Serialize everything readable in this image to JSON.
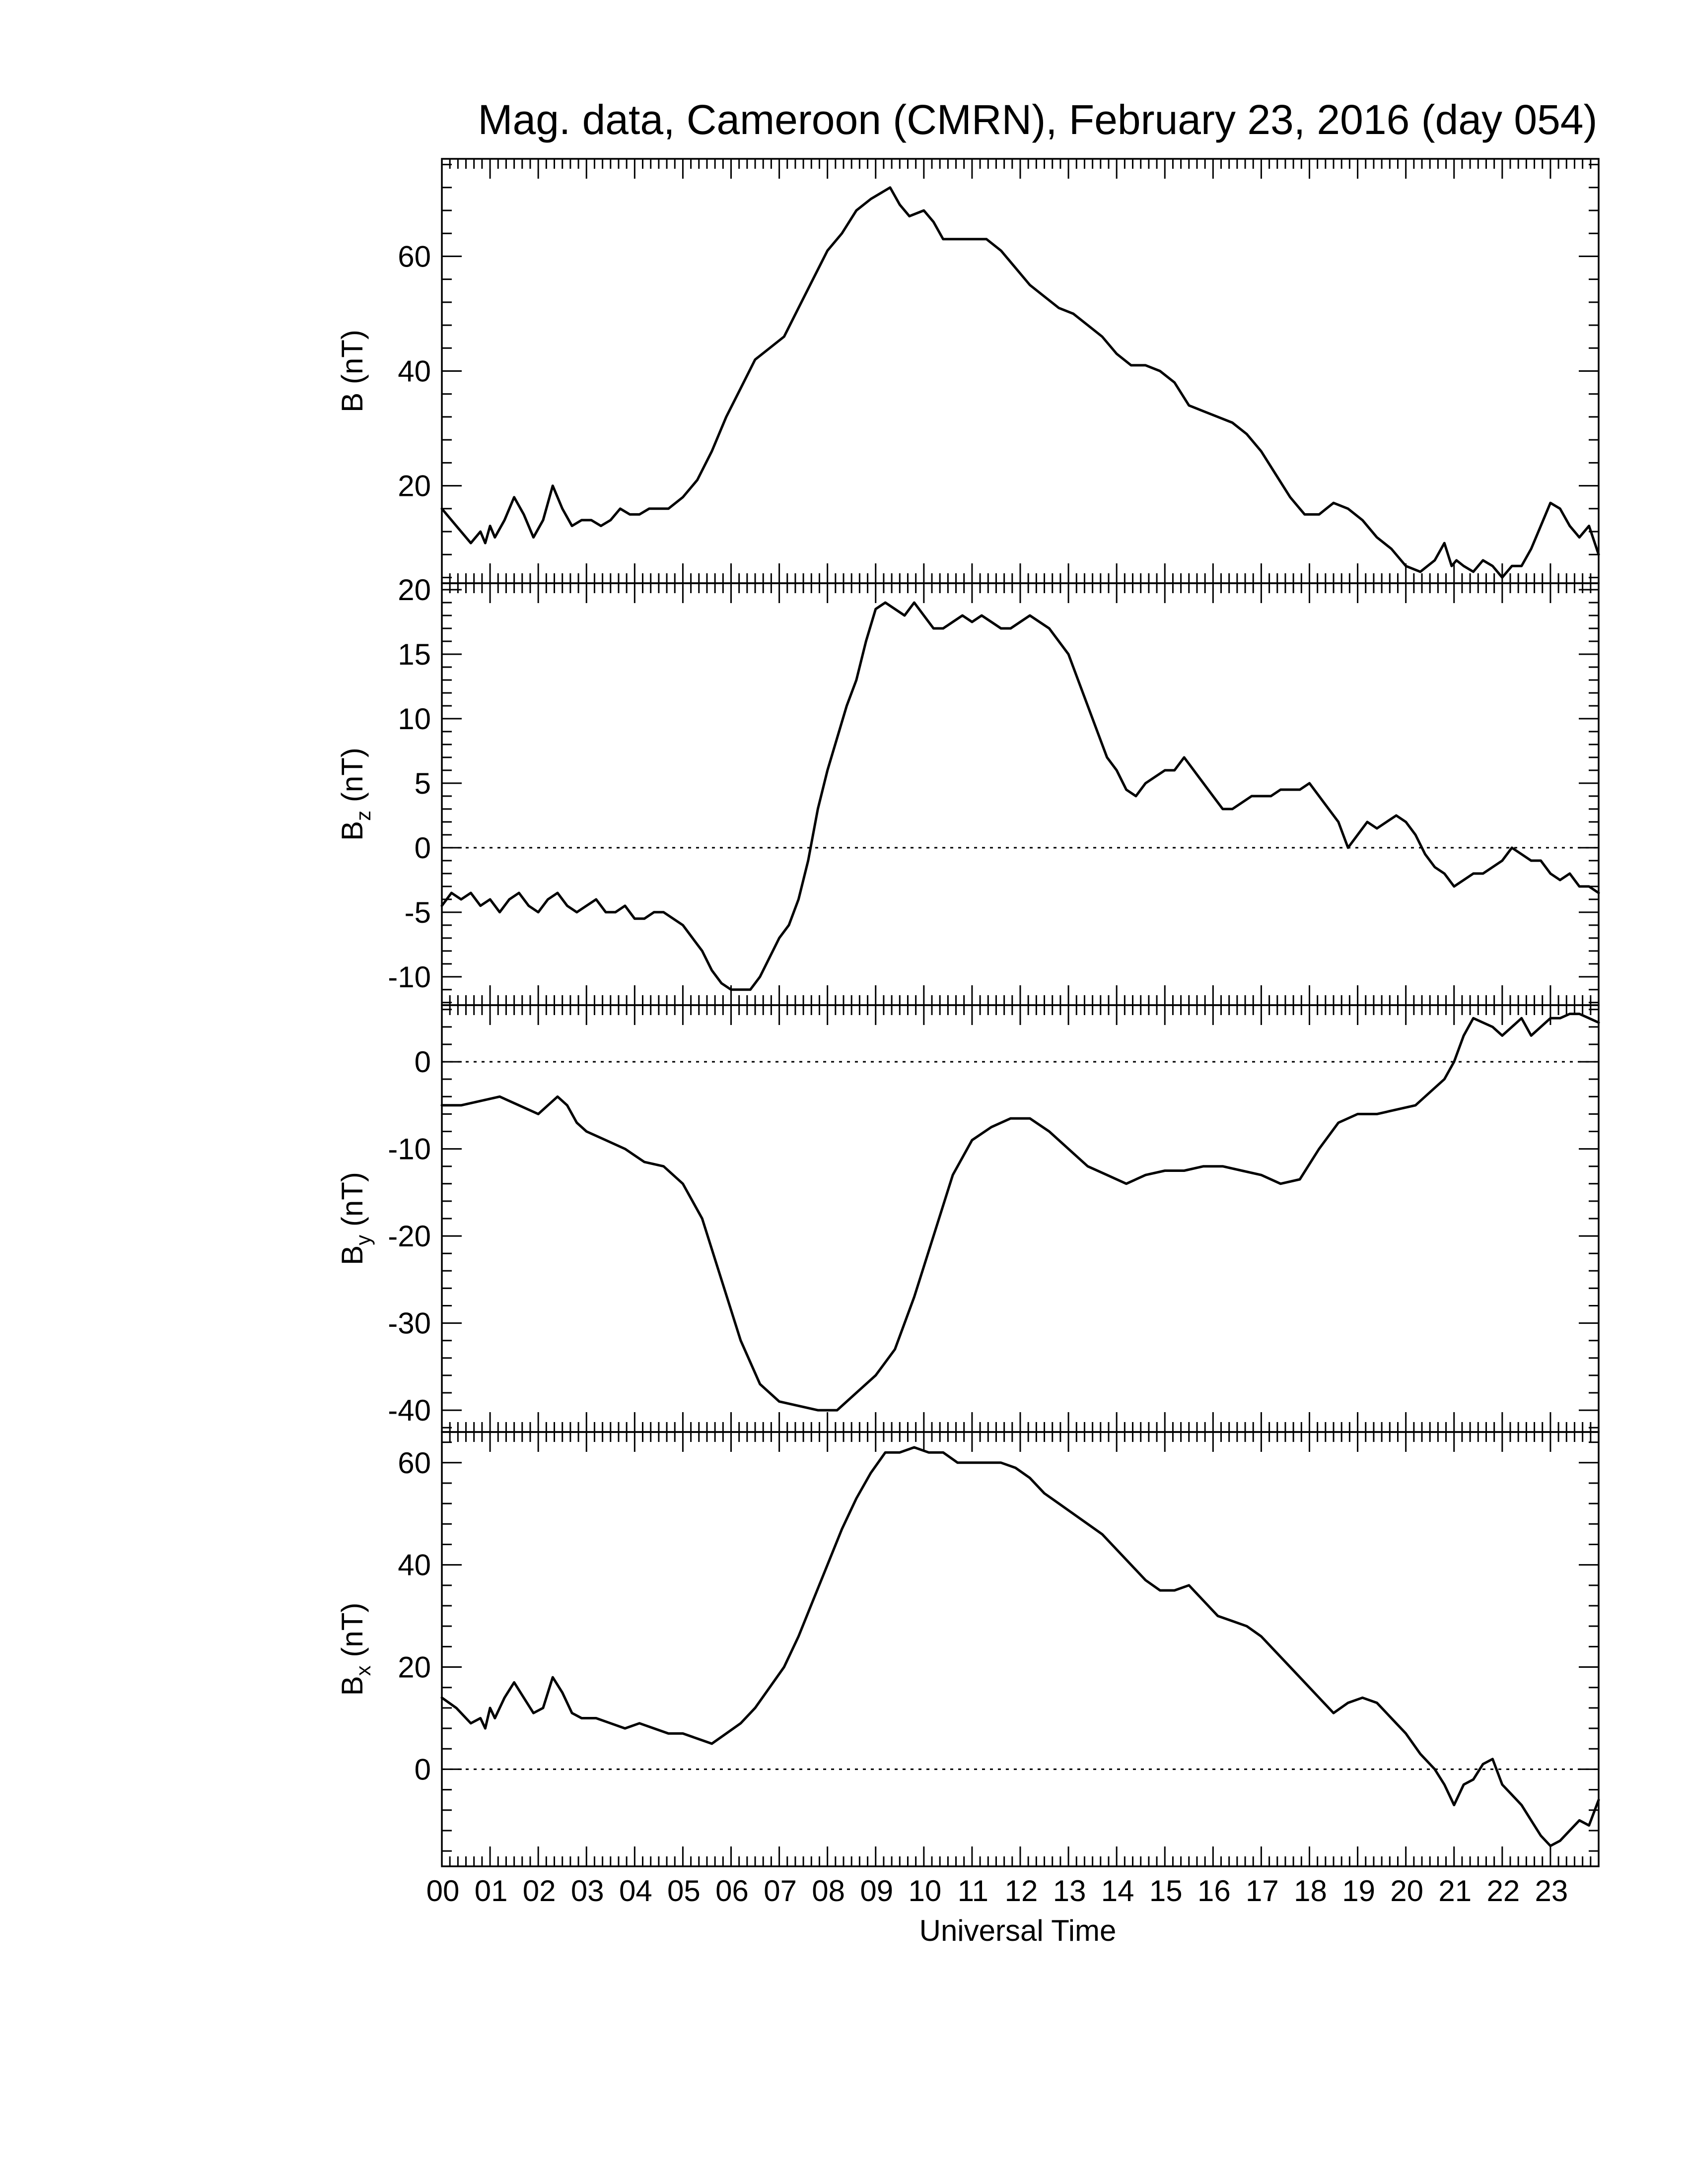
{
  "figure": {
    "title": "Mag. data, Cameroon (CMRN), February 23, 2016 (day 054)",
    "xlabel": "Universal Time",
    "hour_labels": [
      "00",
      "01",
      "02",
      "03",
      "04",
      "05",
      "06",
      "07",
      "08",
      "09",
      "10",
      "11",
      "12",
      "13",
      "14",
      "15",
      "16",
      "17",
      "18",
      "19",
      "20",
      "21",
      "22",
      "23"
    ]
  },
  "chart_data": [
    {
      "type": "line",
      "id": "B",
      "ylabel_main": "B",
      "ylabel_sub": "",
      "ylabel_unit": "(nT)",
      "xlim": [
        0,
        24
      ],
      "ylim": [
        3,
        77
      ],
      "yticks": [
        20,
        40,
        60
      ],
      "zero_line": false,
      "grid": false,
      "series": [
        {
          "x": [
            0,
            0.3,
            0.6,
            0.8,
            0.9,
            1.0,
            1.1,
            1.3,
            1.5,
            1.7,
            1.9,
            2.1,
            2.3,
            2.5,
            2.7,
            2.9,
            3.1,
            3.3,
            3.5,
            3.7,
            3.9,
            4.1,
            4.3,
            4.5,
            4.7,
            5.0,
            5.3,
            5.6,
            5.9,
            6.2,
            6.5,
            6.8,
            7.1,
            7.4,
            7.7,
            8.0,
            8.3,
            8.6,
            8.9,
            9.1,
            9.3,
            9.5,
            9.7,
            10.0,
            10.2,
            10.4,
            10.6,
            10.8,
            11.0,
            11.3,
            11.6,
            11.9,
            12.2,
            12.5,
            12.8,
            13.1,
            13.4,
            13.7,
            14.0,
            14.3,
            14.6,
            14.9,
            15.2,
            15.5,
            15.8,
            16.1,
            16.4,
            16.7,
            17.0,
            17.3,
            17.6,
            17.9,
            18.2,
            18.5,
            18.8,
            19.1,
            19.4,
            19.7,
            20.0,
            20.3,
            20.6,
            20.8,
            20.95,
            21.05,
            21.2,
            21.4,
            21.6,
            21.8,
            22.0,
            22.2,
            22.4,
            22.6,
            22.8,
            23.0,
            23.2,
            23.4,
            23.6,
            23.8,
            24.0
          ],
          "values": [
            16,
            13,
            10,
            12,
            10,
            13,
            11,
            14,
            18,
            15,
            11,
            14,
            20,
            16,
            13,
            14,
            14,
            13,
            14,
            16,
            15,
            15,
            16,
            16,
            16,
            18,
            21,
            26,
            32,
            37,
            42,
            44,
            46,
            51,
            56,
            61,
            64,
            68,
            70,
            71,
            72,
            69,
            67,
            68,
            66,
            63,
            63,
            63,
            63,
            63,
            61,
            58,
            55,
            53,
            51,
            50,
            48,
            46,
            43,
            41,
            41,
            40,
            38,
            34,
            33,
            32,
            31,
            29,
            26,
            22,
            18,
            15,
            15,
            17,
            16,
            14,
            11,
            9,
            6,
            5,
            7,
            10,
            6,
            7,
            6,
            5,
            7,
            6,
            4,
            6,
            6,
            9,
            13,
            17,
            16,
            13,
            11,
            13,
            8
          ]
        }
      ]
    },
    {
      "type": "line",
      "id": "Bz",
      "ylabel_main": "B",
      "ylabel_sub": "z",
      "ylabel_unit": "(nT)",
      "xlim": [
        0,
        24
      ],
      "ylim": [
        -12.2,
        20.5
      ],
      "yticks": [
        -10,
        -5,
        0,
        5,
        10,
        15,
        20
      ],
      "zero_line": true,
      "grid": false,
      "series": [
        {
          "x": [
            0,
            0.2,
            0.4,
            0.6,
            0.8,
            1.0,
            1.2,
            1.4,
            1.6,
            1.8,
            2.0,
            2.2,
            2.4,
            2.6,
            2.8,
            3.0,
            3.2,
            3.4,
            3.6,
            3.8,
            4.0,
            4.2,
            4.4,
            4.6,
            4.8,
            5.0,
            5.2,
            5.4,
            5.6,
            5.8,
            6.0,
            6.2,
            6.4,
            6.6,
            6.8,
            7.0,
            7.2,
            7.4,
            7.6,
            7.8,
            8.0,
            8.2,
            8.4,
            8.6,
            8.8,
            9.0,
            9.2,
            9.4,
            9.6,
            9.8,
            10.0,
            10.2,
            10.4,
            10.6,
            10.8,
            11.0,
            11.2,
            11.4,
            11.6,
            11.8,
            12.0,
            12.2,
            12.4,
            12.6,
            12.8,
            13.0,
            13.2,
            13.4,
            13.6,
            13.8,
            14.0,
            14.2,
            14.4,
            14.6,
            14.8,
            15.0,
            15.2,
            15.4,
            15.6,
            15.8,
            16.0,
            16.2,
            16.4,
            16.6,
            16.8,
            17.0,
            17.2,
            17.4,
            17.6,
            17.8,
            18.0,
            18.2,
            18.4,
            18.6,
            18.8,
            19.0,
            19.2,
            19.4,
            19.6,
            19.8,
            20.0,
            20.2,
            20.4,
            20.6,
            20.8,
            21.0,
            21.2,
            21.4,
            21.6,
            21.8,
            22.0,
            22.2,
            22.4,
            22.6,
            22.8,
            23.0,
            23.2,
            23.4,
            23.6,
            23.8,
            24.0
          ],
          "values": [
            -4.5,
            -3.5,
            -4,
            -3.5,
            -4.5,
            -4,
            -5,
            -4,
            -3.5,
            -4.5,
            -5,
            -4,
            -3.5,
            -4.5,
            -5,
            -4.5,
            -4,
            -5,
            -5,
            -4.5,
            -5.5,
            -5.5,
            -5,
            -5,
            -5.5,
            -6,
            -7,
            -8,
            -9.5,
            -10.5,
            -11,
            -11,
            -11,
            -10,
            -8.5,
            -7,
            -6,
            -4,
            -1,
            3,
            6,
            8.5,
            11,
            13,
            16,
            18.5,
            19,
            18.5,
            18,
            19,
            18,
            17,
            17,
            17.5,
            18,
            17.5,
            18,
            17.5,
            17,
            17,
            17.5,
            18,
            17.5,
            17,
            16,
            15,
            13,
            11,
            9,
            7,
            6,
            4.5,
            4,
            5,
            5.5,
            6,
            6,
            7,
            6,
            5,
            4,
            3,
            3,
            3.5,
            4,
            4,
            4,
            4.5,
            4.5,
            4.5,
            5,
            4,
            3,
            2,
            0,
            1,
            2,
            1.5,
            2,
            2.5,
            2,
            1,
            -0.5,
            -1.5,
            -2,
            -3,
            -2.5,
            -2,
            -2,
            -1.5,
            -1,
            0,
            -0.5,
            -1,
            -1,
            -2,
            -2.5,
            -2,
            -3,
            -3,
            -3.5
          ]
        }
      ]
    },
    {
      "type": "line",
      "id": "By",
      "ylabel_main": "B",
      "ylabel_sub": "y",
      "ylabel_unit": "(nT)",
      "xlim": [
        0,
        24
      ],
      "ylim": [
        -42.5,
        6.5
      ],
      "yticks": [
        -40,
        -30,
        -20,
        -10,
        0
      ],
      "zero_line": true,
      "grid": false,
      "series": [
        {
          "x": [
            0,
            0.4,
            0.8,
            1.2,
            1.6,
            2.0,
            2.2,
            2.4,
            2.6,
            2.8,
            3.0,
            3.4,
            3.8,
            4.2,
            4.6,
            5.0,
            5.4,
            5.8,
            6.2,
            6.6,
            7.0,
            7.4,
            7.8,
            8.2,
            8.6,
            9.0,
            9.4,
            9.8,
            10.2,
            10.6,
            11.0,
            11.4,
            11.8,
            12.2,
            12.6,
            13.0,
            13.4,
            13.8,
            14.2,
            14.6,
            15.0,
            15.4,
            15.8,
            16.2,
            16.6,
            17.0,
            17.4,
            17.8,
            18.2,
            18.6,
            19.0,
            19.4,
            19.8,
            20.2,
            20.6,
            20.8,
            21.0,
            21.2,
            21.4,
            21.6,
            21.8,
            22.0,
            22.2,
            22.4,
            22.6,
            22.8,
            23.0,
            23.2,
            23.4,
            23.6,
            23.8,
            24.0
          ],
          "values": [
            -5,
            -5,
            -4.5,
            -4,
            -5,
            -6,
            -5,
            -4,
            -5,
            -7,
            -8,
            -9,
            -10,
            -11.5,
            -12,
            -14,
            -18,
            -25,
            -32,
            -37,
            -39,
            -39.5,
            -40,
            -40,
            -38,
            -36,
            -33,
            -27,
            -20,
            -13,
            -9,
            -7.5,
            -6.5,
            -6.5,
            -8,
            -10,
            -12,
            -13,
            -14,
            -13,
            -12.5,
            -12.5,
            -12,
            -12,
            -12.5,
            -13,
            -14,
            -13.5,
            -10,
            -7,
            -6,
            -6,
            -5.5,
            -5,
            -3,
            -2,
            0,
            3,
            5,
            4.5,
            4,
            3,
            4,
            5,
            3,
            4,
            5,
            5,
            5.5,
            5.5,
            5,
            4.5
          ]
        }
      ]
    },
    {
      "type": "line",
      "id": "Bx",
      "ylabel_main": "B",
      "ylabel_sub": "x",
      "ylabel_unit": "(nT)",
      "xlim": [
        0,
        24
      ],
      "ylim": [
        -19,
        66
      ],
      "yticks": [
        0,
        20,
        40,
        60
      ],
      "zero_line": true,
      "grid": false,
      "series": [
        {
          "x": [
            0,
            0.3,
            0.6,
            0.8,
            0.9,
            1.0,
            1.1,
            1.3,
            1.5,
            1.7,
            1.9,
            2.1,
            2.3,
            2.5,
            2.7,
            2.9,
            3.2,
            3.5,
            3.8,
            4.1,
            4.4,
            4.7,
            5.0,
            5.3,
            5.6,
            5.9,
            6.2,
            6.5,
            6.8,
            7.1,
            7.4,
            7.7,
            8.0,
            8.3,
            8.6,
            8.9,
            9.2,
            9.5,
            9.8,
            10.1,
            10.4,
            10.7,
            11.0,
            11.3,
            11.6,
            11.9,
            12.2,
            12.5,
            12.8,
            13.1,
            13.4,
            13.7,
            14.0,
            14.3,
            14.6,
            14.9,
            15.2,
            15.5,
            15.8,
            16.1,
            16.4,
            16.7,
            17.0,
            17.3,
            17.6,
            17.9,
            18.2,
            18.5,
            18.8,
            19.1,
            19.4,
            19.7,
            20.0,
            20.3,
            20.6,
            20.8,
            21.0,
            21.2,
            21.4,
            21.6,
            21.8,
            22.0,
            22.2,
            22.4,
            22.6,
            22.8,
            23.0,
            23.2,
            23.4,
            23.6,
            23.8,
            24.0
          ],
          "values": [
            14,
            12,
            9,
            10,
            8,
            12,
            10,
            14,
            17,
            14,
            11,
            12,
            18,
            15,
            11,
            10,
            10,
            9,
            8,
            9,
            8,
            7,
            7,
            6,
            5,
            7,
            9,
            12,
            16,
            20,
            26,
            33,
            40,
            47,
            53,
            58,
            62,
            62,
            63,
            62,
            62,
            60,
            60,
            60,
            60,
            59,
            57,
            54,
            52,
            50,
            48,
            46,
            43,
            40,
            37,
            35,
            35,
            36,
            33,
            30,
            29,
            28,
            26,
            23,
            20,
            17,
            14,
            11,
            13,
            14,
            13,
            10,
            7,
            3,
            0,
            -3,
            -7,
            -3,
            -2,
            1,
            2,
            -3,
            -5,
            -7,
            -10,
            -13,
            -15,
            -14,
            -12,
            -10,
            -11,
            -6
          ]
        }
      ]
    }
  ]
}
